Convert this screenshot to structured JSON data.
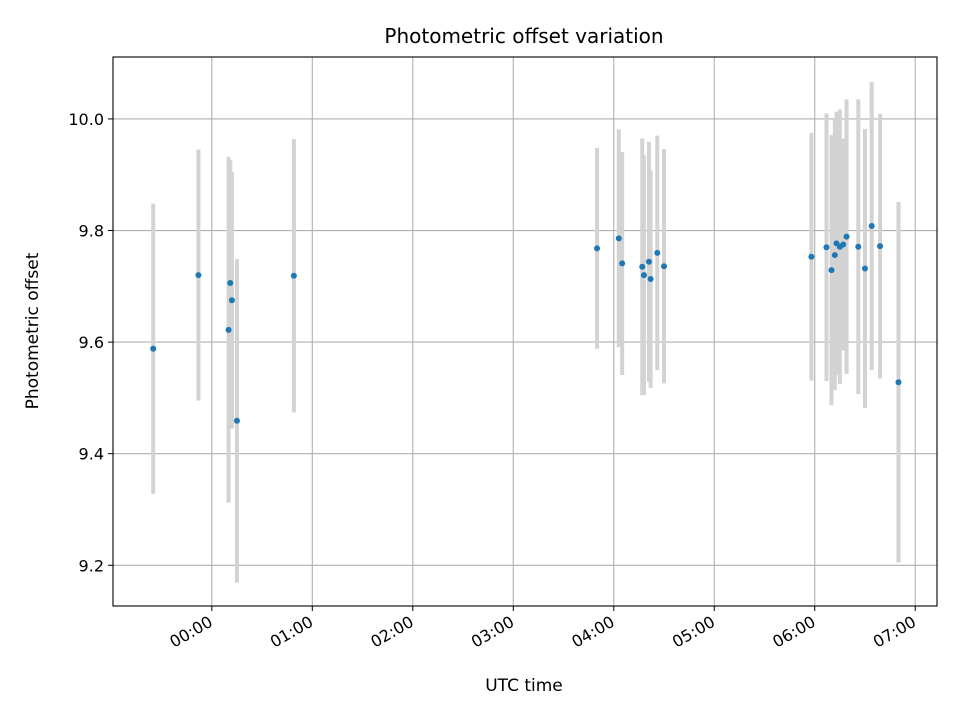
{
  "chart_data": {
    "type": "scatter",
    "title": "Photometric offset variation",
    "xlabel": "UTC time",
    "ylabel": "Photometric offset",
    "grid": true,
    "xlim": [
      "23:01",
      "07:13"
    ],
    "ylim": [
      9.127,
      10.111
    ],
    "x_ticks": [
      "00:00",
      "01:00",
      "02:00",
      "03:00",
      "04:00",
      "05:00",
      "06:00",
      "07:00"
    ],
    "y_ticks": [
      9.2,
      9.4,
      9.6,
      9.8,
      10.0
    ],
    "y_tick_labels": [
      "9.2",
      "9.4",
      "9.6",
      "9.8",
      "10.0"
    ],
    "colors": {
      "marker": "#1f77b4",
      "errorbar": "#d3d3d3",
      "grid": "#b0b0b0"
    },
    "points": [
      {
        "x": "23:25",
        "y": 9.588,
        "yerr": 0.26
      },
      {
        "x": "23:52",
        "y": 9.72,
        "yerr": 0.225
      },
      {
        "x": "00:10",
        "y": 9.622,
        "yerr": 0.31
      },
      {
        "x": "00:11",
        "y": 9.706,
        "yerr": 0.22
      },
      {
        "x": "00:12",
        "y": 9.675,
        "yerr": 0.23
      },
      {
        "x": "00:15",
        "y": 9.459,
        "yerr": 0.29
      },
      {
        "x": "00:49",
        "y": 9.719,
        "yerr": 0.245
      },
      {
        "x": "03:50",
        "y": 9.768,
        "yerr": 0.18
      },
      {
        "x": "04:03",
        "y": 9.786,
        "yerr": 0.195
      },
      {
        "x": "04:05",
        "y": 9.741,
        "yerr": 0.2
      },
      {
        "x": "04:17",
        "y": 9.735,
        "yerr": 0.23
      },
      {
        "x": "04:18",
        "y": 9.72,
        "yerr": 0.215
      },
      {
        "x": "04:21",
        "y": 9.744,
        "yerr": 0.215
      },
      {
        "x": "04:22",
        "y": 9.713,
        "yerr": 0.195
      },
      {
        "x": "04:26",
        "y": 9.76,
        "yerr": 0.21
      },
      {
        "x": "04:30",
        "y": 9.736,
        "yerr": 0.21
      },
      {
        "x": "05:58",
        "y": 9.753,
        "yerr": 0.222
      },
      {
        "x": "06:07",
        "y": 9.77,
        "yerr": 0.24
      },
      {
        "x": "06:10",
        "y": 9.729,
        "yerr": 0.242
      },
      {
        "x": "06:12",
        "y": 9.756,
        "yerr": 0.242
      },
      {
        "x": "06:13",
        "y": 9.777,
        "yerr": 0.236
      },
      {
        "x": "06:15",
        "y": 9.771,
        "yerr": 0.246
      },
      {
        "x": "06:17",
        "y": 9.775,
        "yerr": 0.19
      },
      {
        "x": "06:19",
        "y": 9.789,
        "yerr": 0.246
      },
      {
        "x": "06:26",
        "y": 9.771,
        "yerr": 0.264
      },
      {
        "x": "06:30",
        "y": 9.732,
        "yerr": 0.25
      },
      {
        "x": "06:34",
        "y": 9.808,
        "yerr": 0.258
      },
      {
        "x": "06:39",
        "y": 9.772,
        "yerr": 0.237
      },
      {
        "x": "06:50",
        "y": 9.528,
        "yerr": 0.323
      }
    ]
  }
}
